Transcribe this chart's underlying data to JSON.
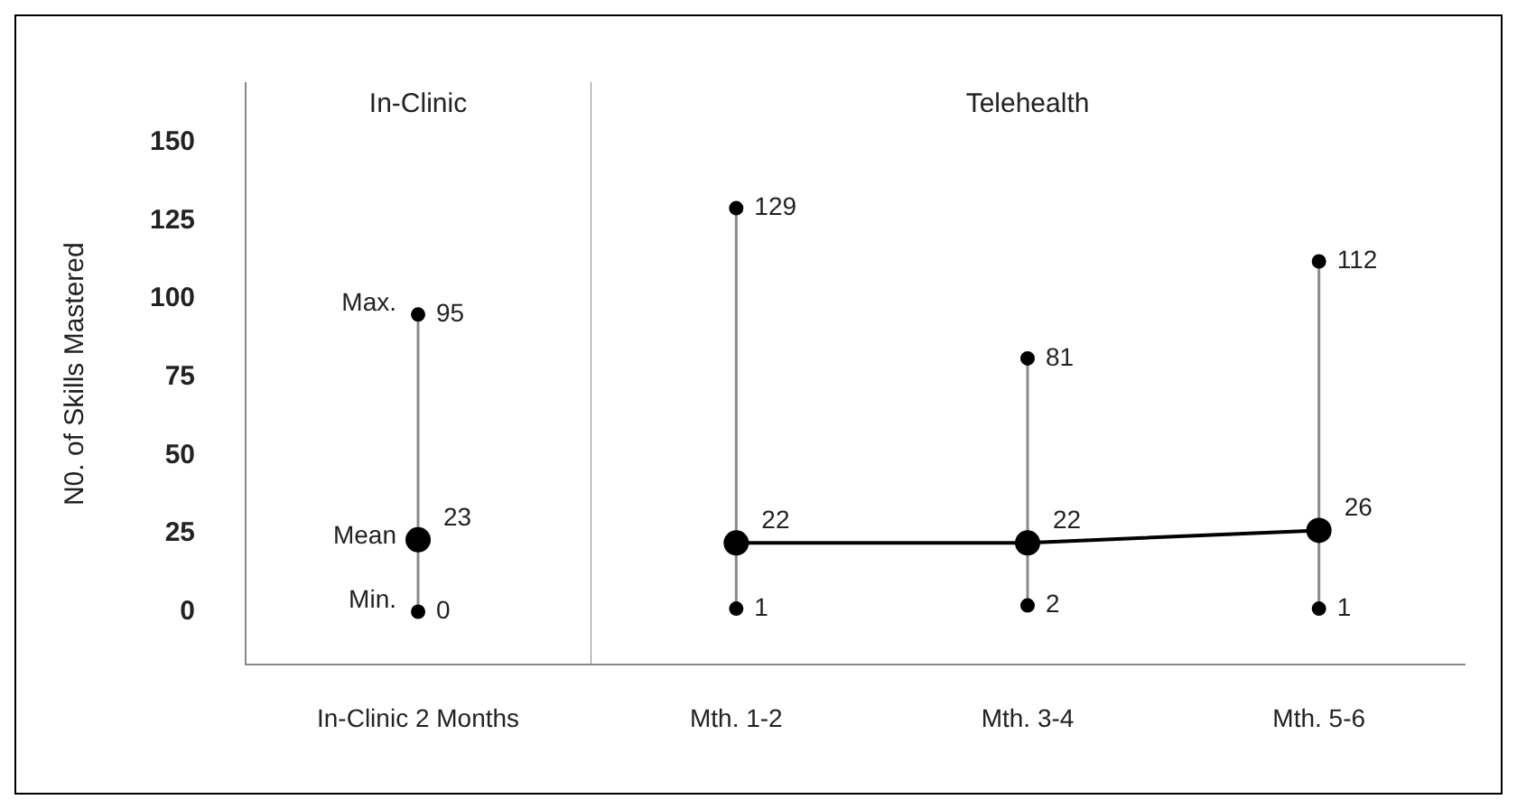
{
  "chart_data": [
    {
      "type": "line",
      "title": "In-Clinic",
      "ylabel": "N0. of Skills Mastered",
      "categories": [
        "In-Clinic 2 Months"
      ],
      "ylim": [
        -17,
        169
      ],
      "yticks": [
        0,
        25,
        50,
        75,
        100,
        125,
        150
      ],
      "grid": false,
      "legend": false,
      "marker": "circle",
      "data_labels": true,
      "series": [
        {
          "name": "Max.",
          "type": "scatter",
          "color": "#000000",
          "values": [
            95
          ]
        },
        {
          "name": "Mean",
          "color": "#000000",
          "values": [
            23
          ]
        },
        {
          "name": "Min.",
          "type": "scatter",
          "color": "#000000",
          "values": [
            0
          ]
        }
      ]
    },
    {
      "type": "line",
      "title": "Telehealth",
      "categories": [
        "Mth. 1-2",
        "Mth. 3-4",
        "Mth. 5-6"
      ],
      "ylim": [
        -17,
        169
      ],
      "yticks": [
        0,
        25,
        50,
        75,
        100,
        125,
        150
      ],
      "tick_labels": "x",
      "grid": false,
      "legend": false,
      "marker": "circle",
      "data_labels": true,
      "series": [
        {
          "type": "scatter",
          "color": "#000000",
          "values": [
            129,
            81,
            112
          ]
        },
        {
          "color": "#000000",
          "values": [
            22,
            22,
            26
          ]
        },
        {
          "type": "scatter",
          "color": "#000000",
          "values": [
            1,
            2,
            1
          ]
        }
      ]
    }
  ]
}
